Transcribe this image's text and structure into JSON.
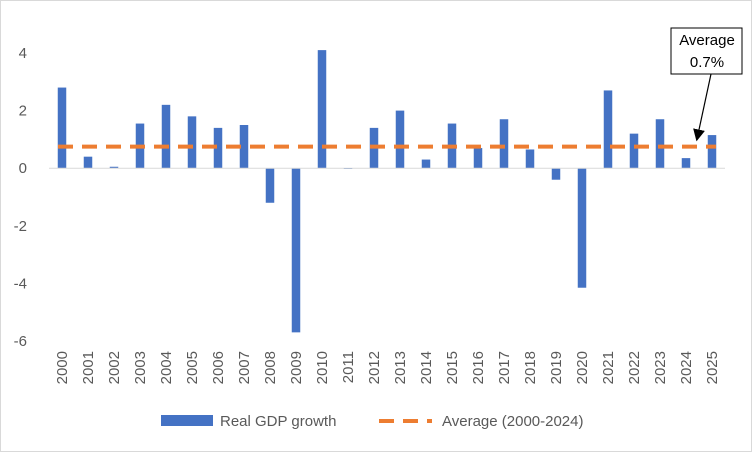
{
  "chart_data": {
    "type": "bar",
    "title": "",
    "xlabel": "",
    "ylabel": "",
    "ylim": [
      -6,
      4
    ],
    "y_ticks": [
      4,
      2,
      0,
      -2,
      -4,
      -6
    ],
    "grid": false,
    "legend_position": "bottom",
    "categories": [
      "2000",
      "2001",
      "2002",
      "2003",
      "2004",
      "2005",
      "2006",
      "2007",
      "2008",
      "2009",
      "2010",
      "2011",
      "2012",
      "2013",
      "2014",
      "2015",
      "2016",
      "2017",
      "2018",
      "2019",
      "2020",
      "2021",
      "2022",
      "2023",
      "2024",
      "2025"
    ],
    "series": [
      {
        "name": "Real GDP growth",
        "type": "bar",
        "color": "#4472c4",
        "values": [
          2.8,
          0.4,
          0.05,
          1.55,
          2.2,
          1.8,
          1.4,
          1.5,
          -1.2,
          -5.7,
          4.1,
          0.0,
          1.4,
          2.0,
          0.3,
          1.55,
          0.7,
          1.7,
          0.65,
          -0.4,
          -4.15,
          2.7,
          1.2,
          1.7,
          0.35,
          1.15
        ]
      },
      {
        "name": "Average (2000-2024)",
        "type": "line",
        "style": "dashed",
        "color": "#ed7d31",
        "value": 0.75
      }
    ],
    "annotation": {
      "lines": [
        "Average",
        "0.7%"
      ],
      "points_to": "2024"
    }
  }
}
